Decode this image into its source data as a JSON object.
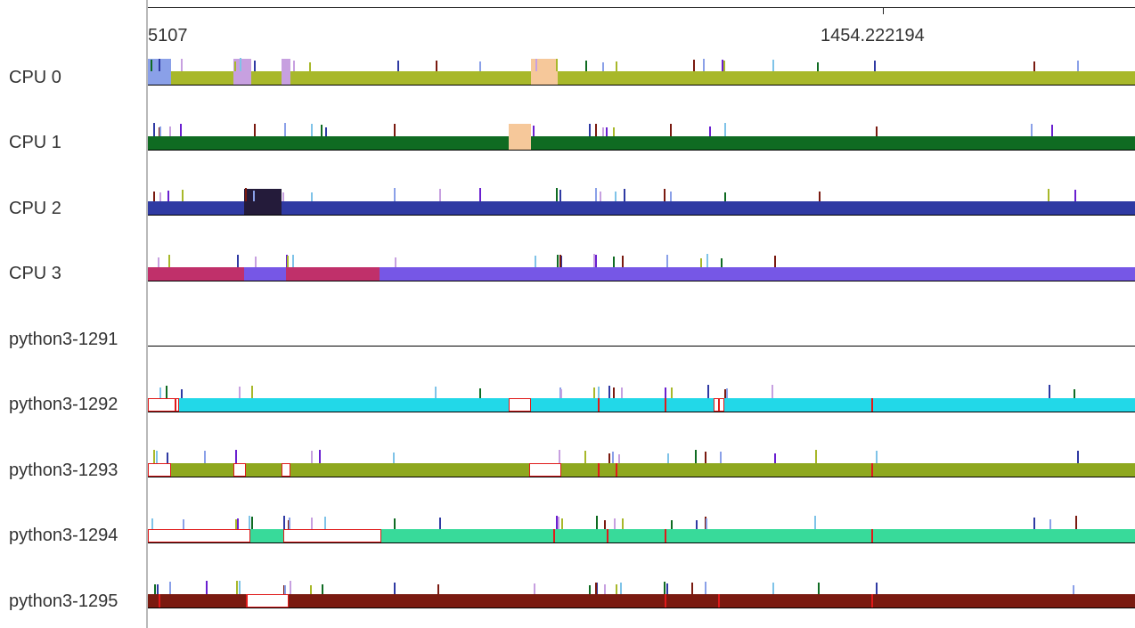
{
  "ruler": {
    "left_label": "5107",
    "mid_label": "1454.222194"
  },
  "rows": [
    {
      "label": "CPU 0",
      "color": "#a8b82a"
    },
    {
      "label": "CPU 1",
      "color": "#0f6b22"
    },
    {
      "label": "CPU 2",
      "color": "#2f3aa3"
    },
    {
      "label": "CPU 3",
      "color": "#7657e6"
    },
    {
      "label": "python3-1291",
      "color": "#000000"
    },
    {
      "label": "python3-1292",
      "color": "#22d8e8"
    },
    {
      "label": "python3-1293",
      "color": "#8ea81f"
    },
    {
      "label": "python3-1294",
      "color": "#38da9a"
    },
    {
      "label": "python3-1295",
      "color": "#7a1a10"
    }
  ]
}
